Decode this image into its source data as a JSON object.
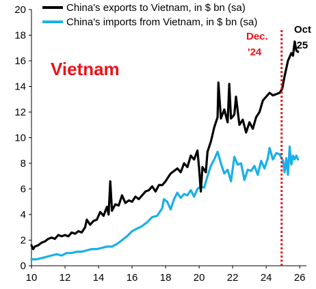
{
  "chart_data": {
    "type": "line",
    "x_range": [
      2010,
      2026.4
    ],
    "ylim": [
      0,
      20
    ],
    "x_ticks": [
      {
        "value": 2010,
        "label": "10"
      },
      {
        "value": 2012,
        "label": "12"
      },
      {
        "value": 2014,
        "label": "14"
      },
      {
        "value": 2016,
        "label": "16"
      },
      {
        "value": 2018,
        "label": "18"
      },
      {
        "value": 2020,
        "label": "20"
      },
      {
        "value": 2022,
        "label": "22"
      },
      {
        "value": 2024,
        "label": "24"
      },
      {
        "value": 2026,
        "label": "26"
      }
    ],
    "y_ticks": [
      0,
      2,
      4,
      6,
      8,
      10,
      12,
      14,
      16,
      18,
      20
    ],
    "grid": false,
    "legend_position": "top-left",
    "series": [
      {
        "name": "China's exports to Vietnam, in $ bn (sa)",
        "color": "#000000",
        "points": [
          [
            2010.0,
            1.6
          ],
          [
            2010.1,
            1.3
          ],
          [
            2010.2,
            1.5
          ],
          [
            2010.4,
            1.6
          ],
          [
            2010.6,
            1.8
          ],
          [
            2010.8,
            1.9
          ],
          [
            2011.0,
            2.1
          ],
          [
            2011.2,
            2.2
          ],
          [
            2011.4,
            2.1
          ],
          [
            2011.6,
            2.4
          ],
          [
            2011.8,
            2.3
          ],
          [
            2012.0,
            2.4
          ],
          [
            2012.2,
            2.3
          ],
          [
            2012.4,
            2.6
          ],
          [
            2012.6,
            2.5
          ],
          [
            2012.8,
            2.7
          ],
          [
            2013.0,
            2.6
          ],
          [
            2013.2,
            3.0
          ],
          [
            2013.3,
            3.6
          ],
          [
            2013.5,
            3.2
          ],
          [
            2013.7,
            3.5
          ],
          [
            2013.9,
            3.6
          ],
          [
            2014.1,
            4.2
          ],
          [
            2014.3,
            3.9
          ],
          [
            2014.5,
            4.6
          ],
          [
            2014.6,
            4.0
          ],
          [
            2014.7,
            6.6
          ],
          [
            2014.8,
            4.3
          ],
          [
            2015.0,
            4.8
          ],
          [
            2015.2,
            4.7
          ],
          [
            2015.4,
            5.5
          ],
          [
            2015.6,
            4.9
          ],
          [
            2015.8,
            5.1
          ],
          [
            2016.0,
            5.0
          ],
          [
            2016.2,
            5.4
          ],
          [
            2016.4,
            5.2
          ],
          [
            2016.6,
            5.5
          ],
          [
            2016.8,
            5.8
          ],
          [
            2017.0,
            5.9
          ],
          [
            2017.2,
            6.2
          ],
          [
            2017.4,
            5.8
          ],
          [
            2017.6,
            6.3
          ],
          [
            2017.8,
            6.3
          ],
          [
            2018.0,
            6.6
          ],
          [
            2018.1,
            6.8
          ],
          [
            2018.3,
            7.2
          ],
          [
            2018.5,
            7.4
          ],
          [
            2018.7,
            7.6
          ],
          [
            2018.9,
            7.3
          ],
          [
            2019.1,
            8.0
          ],
          [
            2019.3,
            7.7
          ],
          [
            2019.5,
            8.6
          ],
          [
            2019.7,
            8.3
          ],
          [
            2019.9,
            9.0
          ],
          [
            2020.0,
            7.6
          ],
          [
            2020.1,
            5.8
          ],
          [
            2020.2,
            7.7
          ],
          [
            2020.4,
            7.3
          ],
          [
            2020.5,
            8.9
          ],
          [
            2020.7,
            9.7
          ],
          [
            2020.9,
            10.8
          ],
          [
            2021.1,
            11.6
          ],
          [
            2021.15,
            14.3
          ],
          [
            2021.3,
            11.5
          ],
          [
            2021.5,
            12.2
          ],
          [
            2021.7,
            11.2
          ],
          [
            2021.8,
            14.2
          ],
          [
            2021.9,
            11.5
          ],
          [
            2022.1,
            11.8
          ],
          [
            2022.2,
            13.2
          ],
          [
            2022.4,
            11.0
          ],
          [
            2022.6,
            11.4
          ],
          [
            2022.8,
            10.4
          ],
          [
            2023.0,
            11.2
          ],
          [
            2023.2,
            10.7
          ],
          [
            2023.4,
            11.6
          ],
          [
            2023.6,
            12.0
          ],
          [
            2023.8,
            12.9
          ],
          [
            2024.0,
            13.2
          ],
          [
            2024.2,
            13.5
          ],
          [
            2024.4,
            13.3
          ],
          [
            2024.6,
            13.4
          ],
          [
            2024.8,
            13.5
          ],
          [
            2024.95,
            13.8
          ],
          [
            2025.1,
            14.8
          ],
          [
            2025.3,
            16.0
          ],
          [
            2025.5,
            16.6
          ],
          [
            2025.6,
            16.4
          ],
          [
            2025.7,
            17.5
          ],
          [
            2025.8,
            16.8
          ],
          [
            2025.9,
            16.7
          ]
        ]
      },
      {
        "name": "China's imports from Vietnam, in $ bn (sa)",
        "color": "#1ab0e8",
        "points": [
          [
            2010.0,
            0.5
          ],
          [
            2010.3,
            0.5
          ],
          [
            2010.6,
            0.6
          ],
          [
            2010.9,
            0.7
          ],
          [
            2011.2,
            0.8
          ],
          [
            2011.5,
            0.9
          ],
          [
            2011.8,
            0.8
          ],
          [
            2012.1,
            1.0
          ],
          [
            2012.4,
            1.0
          ],
          [
            2012.7,
            1.1
          ],
          [
            2013.0,
            1.1
          ],
          [
            2013.3,
            1.2
          ],
          [
            2013.6,
            1.3
          ],
          [
            2013.9,
            1.3
          ],
          [
            2014.2,
            1.4
          ],
          [
            2014.5,
            1.5
          ],
          [
            2014.8,
            1.5
          ],
          [
            2015.1,
            1.7
          ],
          [
            2015.4,
            2.0
          ],
          [
            2015.7,
            2.3
          ],
          [
            2016.0,
            2.7
          ],
          [
            2016.3,
            2.9
          ],
          [
            2016.6,
            3.1
          ],
          [
            2016.9,
            3.4
          ],
          [
            2017.2,
            3.8
          ],
          [
            2017.5,
            3.9
          ],
          [
            2017.8,
            4.5
          ],
          [
            2017.9,
            5.2
          ],
          [
            2018.1,
            5.0
          ],
          [
            2018.3,
            4.4
          ],
          [
            2018.5,
            5.2
          ],
          [
            2018.7,
            5.7
          ],
          [
            2018.9,
            5.3
          ],
          [
            2019.1,
            5.6
          ],
          [
            2019.3,
            5.5
          ],
          [
            2019.5,
            5.9
          ],
          [
            2019.7,
            5.4
          ],
          [
            2019.9,
            6.0
          ],
          [
            2020.1,
            6.2
          ],
          [
            2020.3,
            6.1
          ],
          [
            2020.5,
            7.0
          ],
          [
            2020.7,
            7.8
          ],
          [
            2020.9,
            8.3
          ],
          [
            2021.1,
            8.9
          ],
          [
            2021.3,
            8.0
          ],
          [
            2021.5,
            7.2
          ],
          [
            2021.7,
            7.5
          ],
          [
            2021.9,
            6.6
          ],
          [
            2022.1,
            8.5
          ],
          [
            2022.3,
            7.9
          ],
          [
            2022.5,
            8.0
          ],
          [
            2022.7,
            6.7
          ],
          [
            2022.9,
            7.5
          ],
          [
            2023.1,
            7.4
          ],
          [
            2023.3,
            7.8
          ],
          [
            2023.5,
            7.1
          ],
          [
            2023.7,
            8.2
          ],
          [
            2023.9,
            7.6
          ],
          [
            2024.1,
            8.4
          ],
          [
            2024.2,
            9.2
          ],
          [
            2024.4,
            8.3
          ],
          [
            2024.6,
            8.8
          ],
          [
            2024.8,
            8.7
          ],
          [
            2025.0,
            8.2
          ],
          [
            2025.1,
            7.3
          ],
          [
            2025.2,
            8.4
          ],
          [
            2025.3,
            7.1
          ],
          [
            2025.4,
            9.3
          ],
          [
            2025.5,
            7.9
          ],
          [
            2025.6,
            8.6
          ],
          [
            2025.7,
            8.3
          ],
          [
            2025.8,
            8.6
          ],
          [
            2025.9,
            8.3
          ]
        ]
      }
    ],
    "vline": {
      "x": 2024.92,
      "color": "#e8141a",
      "style": "dotted"
    },
    "annotations": {
      "country": "Vietnam",
      "dec_line1": "Dec.",
      "dec_line2": "'24",
      "oct_line1": "Oct",
      "oct_line2": "'25"
    },
    "colors": {
      "accent_red": "#e8141a",
      "axis": "#000000"
    }
  }
}
